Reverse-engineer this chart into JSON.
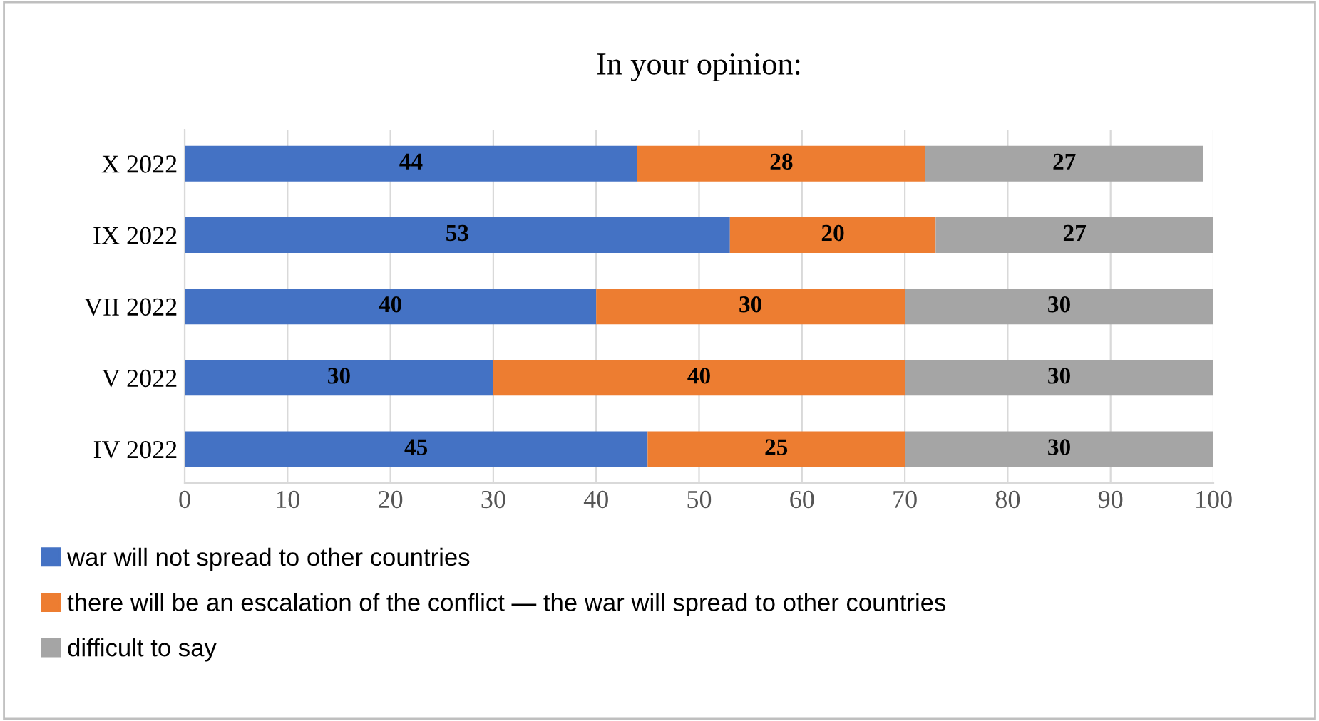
{
  "chart_data": {
    "type": "bar",
    "orientation": "horizontal",
    "stacked": true,
    "title": "In your opinion:",
    "categories": [
      "X 2022",
      "IX 2022",
      "VII 2022",
      "V 2022",
      "IV 2022"
    ],
    "series": [
      {
        "name": "war will not spread to other countries",
        "color": "#4472c4",
        "values": [
          44,
          53,
          40,
          30,
          45
        ]
      },
      {
        "name": "there will be an escalation of the conflict — the war will spread to other countries",
        "color": "#ed7d31",
        "values": [
          28,
          20,
          30,
          40,
          25
        ]
      },
      {
        "name": "difficult to say",
        "color": "#a5a5a5",
        "values": [
          27,
          27,
          30,
          30,
          30
        ]
      }
    ],
    "xlim": [
      0,
      100
    ],
    "xticks": [
      0,
      10,
      20,
      30,
      40,
      50,
      60,
      70,
      80,
      90,
      100
    ],
    "grid": "x",
    "legend": "bottom",
    "data_labels": true
  }
}
